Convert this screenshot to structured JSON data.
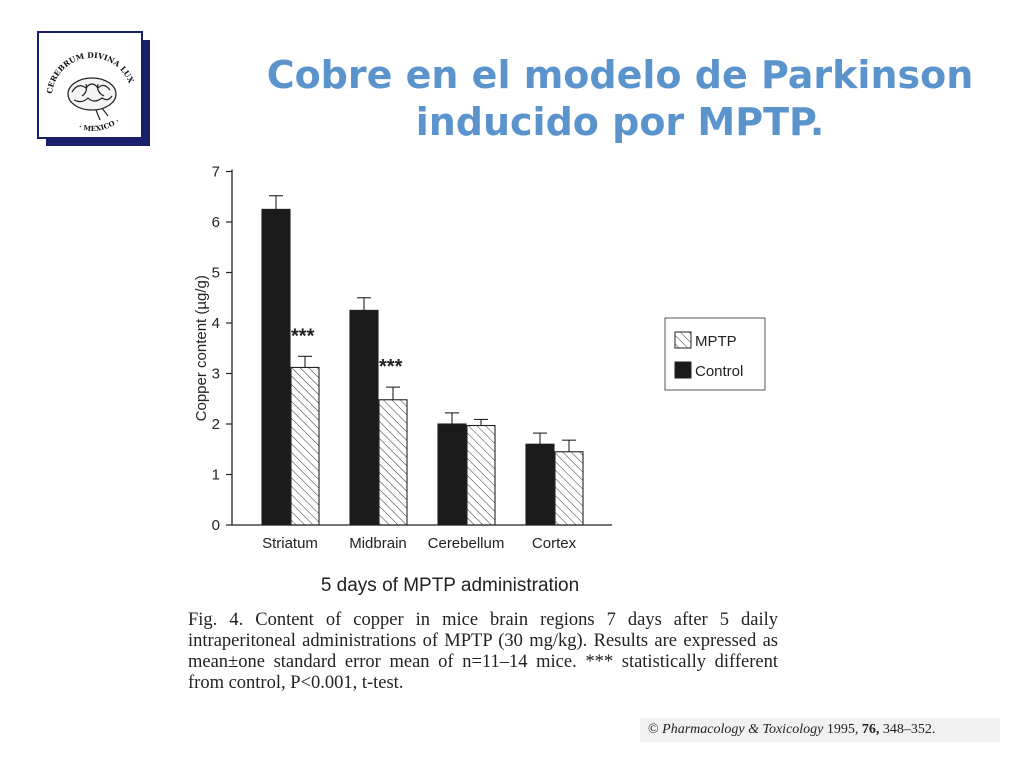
{
  "slide": {
    "title_line1": "Cobre en el modelo de Parkinson",
    "title_line2": "inducido por MPTP."
  },
  "logo": {
    "top_text": "CEREBRUM DIVINA LUX RATIO SALUS SCIENTIAE",
    "bottom_text": "· MEXICO ·"
  },
  "chart_data": {
    "type": "bar",
    "categories": [
      "Striatum",
      "Midbrain",
      "Cerebellum",
      "Cortex"
    ],
    "series": [
      {
        "name": "Control",
        "values": [
          6.25,
          4.25,
          2.0,
          1.6
        ],
        "errors": [
          0.27,
          0.25,
          0.22,
          0.22
        ],
        "color": "#1a1a1a",
        "pattern": "solid"
      },
      {
        "name": "MPTP",
        "values": [
          3.12,
          2.48,
          1.97,
          1.45
        ],
        "errors": [
          0.22,
          0.25,
          0.12,
          0.23
        ],
        "color": "#ffffff",
        "pattern": "hatched"
      }
    ],
    "significance": [
      "***",
      "***",
      "",
      ""
    ],
    "ylabel": "Copper content (µg/g)",
    "xlabel": "5 days of MPTP administration",
    "ylim": [
      0,
      7
    ],
    "yticks": [
      0,
      1,
      2,
      3,
      4,
      5,
      6,
      7
    ],
    "legend_placement": "right",
    "legend_order": [
      "MPTP",
      "Control"
    ],
    "grid": false
  },
  "caption": "Fig. 4. Content of copper in mice brain regions 7 days after 5 daily intraperitoneal administrations of MPTP (30 mg/kg). Results are expressed as mean±one standard error mean of n=11–14 mice. *** statistically different from control, P<0.001, t-test.",
  "citation": {
    "symbol": "©",
    "journal": "Pharmacology & Toxicology",
    "year": "1995,",
    "volume": "76,",
    "pages": "348–352."
  }
}
